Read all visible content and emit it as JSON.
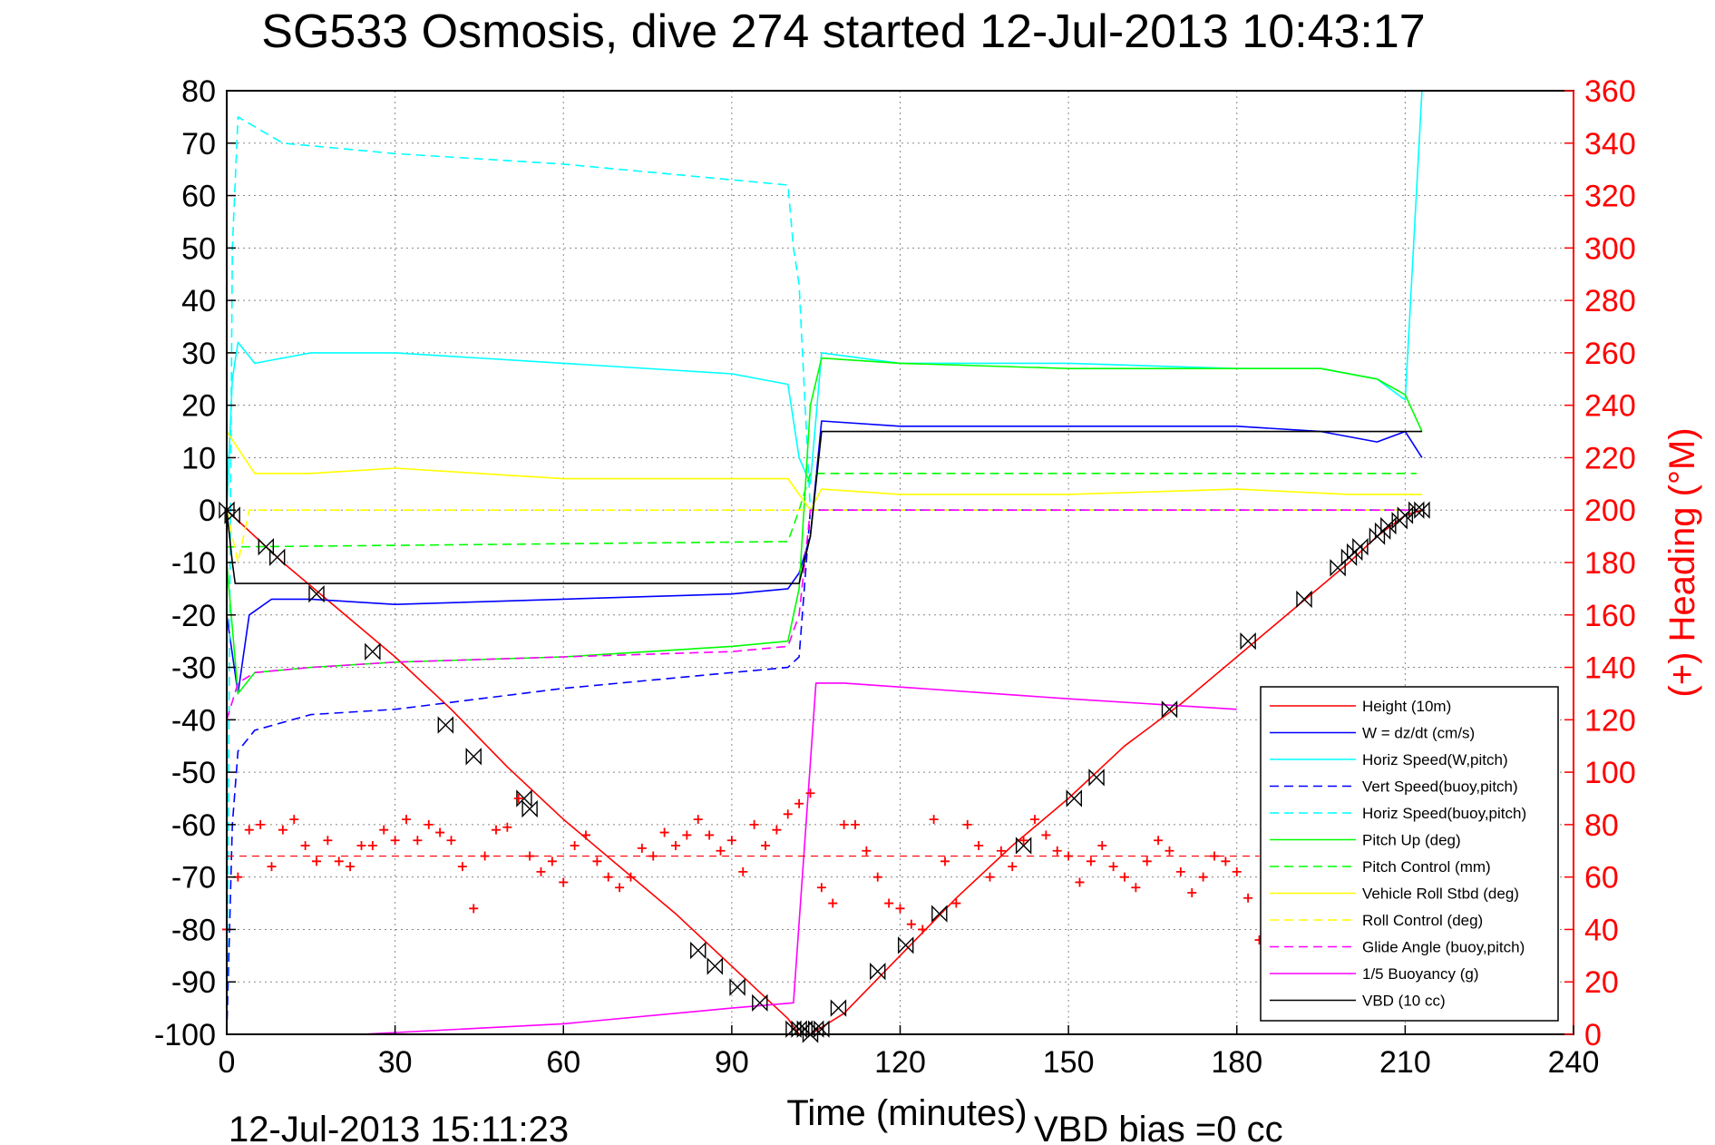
{
  "chart_data": {
    "type": "line",
    "title": "SG533 Osmosis, dive 274 started 12-Jul-2013 10:43:17",
    "xlabel": "Time (minutes)",
    "ylabel": "",
    "y2label": "(+) Heading (°M)",
    "xlim": [
      0,
      240
    ],
    "ylim": [
      -100,
      80
    ],
    "y2lim": [
      0,
      360
    ],
    "xticks": [
      "0",
      "30",
      "60",
      "90",
      "120",
      "150",
      "180",
      "210",
      "240"
    ],
    "yticks": [
      "80",
      "70",
      "60",
      "50",
      "40",
      "30",
      "20",
      "10",
      "0",
      "-10",
      "-20",
      "-30",
      "-40",
      "-50",
      "-60",
      "-70",
      "-80",
      "-90",
      "-100"
    ],
    "y2ticks": [
      "360",
      "340",
      "320",
      "300",
      "280",
      "260",
      "240",
      "220",
      "200",
      "180",
      "160",
      "140",
      "120",
      "100",
      "80",
      "60",
      "40",
      "20",
      "0"
    ],
    "grid": true,
    "legend_position": "bottom-right",
    "footer_left": "12-Jul-2013 15:11:23",
    "footer_right": "VBD bias =0 cc",
    "colors": {
      "red": "#ff0000",
      "blue": "#0000ff",
      "cyan": "#00ffff",
      "green": "#00ff00",
      "yellow": "#ffff00",
      "magenta": "#ff00ff",
      "black": "#000000"
    },
    "series": [
      {
        "name": "Height (10m)",
        "color": "#ff0000",
        "style": "solid",
        "x": [
          0,
          10,
          20,
          30,
          40,
          50,
          60,
          70,
          80,
          90,
          100,
          102,
          104,
          110,
          120,
          130,
          140,
          150,
          160,
          170,
          180,
          190,
          200,
          205,
          210,
          213
        ],
        "y": [
          0,
          -10,
          -19,
          -28,
          -38,
          -49,
          -59,
          -68,
          -77,
          -87,
          -97,
          -100,
          -100,
          -96,
          -85,
          -74,
          -64,
          -55,
          -45,
          -37,
          -28,
          -19,
          -10,
          -5,
          -1,
          0
        ]
      },
      {
        "name": "W = dz/dt (cm/s)",
        "color": "#0000ff",
        "style": "solid",
        "x": [
          0,
          2,
          4,
          8,
          15,
          30,
          60,
          90,
          100,
          102,
          104,
          106,
          120,
          150,
          180,
          195,
          205,
          210,
          213
        ],
        "y": [
          -20,
          -35,
          -20,
          -17,
          -17,
          -18,
          -17,
          -16,
          -15,
          -12,
          -5,
          17,
          16,
          16,
          16,
          15,
          13,
          15,
          10
        ]
      },
      {
        "name": "Horiz Speed(W,pitch)",
        "color": "#00ffff",
        "style": "solid",
        "x": [
          0,
          1,
          2,
          5,
          15,
          30,
          60,
          90,
          100,
          102,
          104,
          106,
          120,
          150,
          180,
          195,
          205,
          210,
          213
        ],
        "y": [
          0,
          25,
          32,
          28,
          30,
          30,
          28,
          26,
          24,
          10,
          5,
          30,
          28,
          28,
          27,
          27,
          25,
          21,
          80
        ]
      },
      {
        "name": "Vert Speed(buoy,pitch)",
        "color": "#0000ff",
        "style": "dashed",
        "x": [
          0,
          1,
          2,
          5,
          15,
          30,
          60,
          90,
          100,
          102,
          104,
          106,
          212
        ],
        "y": [
          -100,
          -60,
          -46,
          -42,
          -39,
          -38,
          -34,
          -31,
          -30,
          -28,
          0,
          0,
          0
        ]
      },
      {
        "name": "Horiz Speed(buoy,pitch)",
        "color": "#00ffff",
        "style": "dashed",
        "x": [
          0,
          1,
          2,
          10,
          30,
          60,
          90,
          100,
          101,
          102,
          104,
          106,
          212
        ],
        "y": [
          -100,
          50,
          75,
          70,
          68,
          66,
          63,
          62,
          50,
          43,
          0,
          0,
          0
        ]
      },
      {
        "name": "Pitch Up (deg)",
        "color": "#00ff00",
        "style": "solid",
        "x": [
          0,
          2,
          5,
          15,
          30,
          60,
          90,
          100,
          102,
          104,
          106,
          120,
          150,
          180,
          195,
          205,
          210,
          213
        ],
        "y": [
          -10,
          -35,
          -31,
          -30,
          -29,
          -28,
          -26,
          -25,
          -15,
          20,
          29,
          28,
          27,
          27,
          27,
          25,
          22,
          15
        ]
      },
      {
        "name": "Pitch Control (mm)",
        "color": "#00ff00",
        "style": "dashed",
        "x": [
          0,
          3,
          100,
          102,
          104,
          212
        ],
        "y": [
          -7,
          -7,
          -6,
          0,
          7,
          7
        ]
      },
      {
        "name": "Vehicle Roll Stbd (deg)",
        "color": "#ffff00",
        "style": "solid",
        "x": [
          0,
          5,
          15,
          30,
          60,
          90,
          100,
          102,
          104,
          106,
          120,
          150,
          180,
          200,
          210,
          213
        ],
        "y": [
          15,
          7,
          7,
          8,
          6,
          6,
          6,
          3,
          0,
          4,
          3,
          3,
          4,
          3,
          3,
          3
        ]
      },
      {
        "name": "Roll Control (deg)",
        "color": "#ffff00",
        "style": "dashed",
        "x": [
          0,
          2,
          4,
          100,
          102,
          104,
          212
        ],
        "y": [
          0,
          -10,
          0,
          0,
          0,
          0,
          0
        ]
      },
      {
        "name": "Glide Angle (buoy,pitch)",
        "color": "#ff00ff",
        "style": "dashed",
        "x": [
          0,
          2,
          5,
          15,
          30,
          60,
          90,
          100,
          102,
          104,
          106,
          212
        ],
        "y": [
          -40,
          -33,
          -31,
          -30,
          -29,
          -28,
          -27,
          -26,
          -20,
          0,
          0,
          0
        ]
      },
      {
        "name": "1/5 Buoyancy (g)",
        "color": "#ff00ff",
        "style": "solid",
        "x": [
          24,
          60,
          90,
          101,
          105,
          110,
          150,
          180
        ],
        "y": [
          -100,
          -98,
          -95,
          -94,
          -33,
          -33,
          -36,
          -38
        ]
      },
      {
        "name": "VBD (10 cc)",
        "color": "#000000",
        "style": "solid",
        "x": [
          0,
          1,
          1.5,
          100,
          102,
          104,
          106,
          212,
          213
        ],
        "y": [
          0,
          -10,
          -14,
          -14,
          -14,
          -5,
          15,
          15,
          15
        ]
      }
    ],
    "heading": {
      "axis": "right",
      "marker": "+",
      "color": "#ff0000",
      "desired_heading": 68,
      "x": [
        0,
        2,
        4,
        6,
        8,
        10,
        12,
        14,
        16,
        18,
        20,
        22,
        24,
        26,
        28,
        30,
        32,
        34,
        36,
        38,
        40,
        42,
        44,
        46,
        48,
        50,
        52,
        54,
        56,
        58,
        60,
        62,
        64,
        66,
        68,
        70,
        72,
        74,
        76,
        78,
        80,
        82,
        84,
        86,
        88,
        90,
        92,
        94,
        96,
        98,
        100,
        102,
        104,
        106,
        108,
        110,
        112,
        114,
        116,
        118,
        120,
        122,
        124,
        126,
        128,
        130,
        132,
        134,
        136,
        138,
        140,
        142,
        144,
        146,
        148,
        150,
        152,
        154,
        156,
        158,
        160,
        162,
        164,
        166,
        168,
        170,
        172,
        174,
        176,
        178,
        180,
        182,
        184
      ],
      "y": [
        40,
        60,
        78,
        80,
        64,
        78,
        82,
        72,
        66,
        74,
        66,
        64,
        72,
        72,
        78,
        74,
        82,
        74,
        80,
        77,
        74,
        64,
        48,
        68,
        78,
        79,
        90,
        68,
        62,
        66,
        58,
        72,
        76,
        66,
        60,
        56,
        60,
        71,
        68,
        77,
        72,
        76,
        82,
        76,
        70,
        74,
        62,
        80,
        72,
        78,
        84,
        88,
        92,
        56,
        50,
        80,
        80,
        70,
        60,
        50,
        48,
        42,
        40,
        82,
        66,
        50,
        80,
        72,
        60,
        70,
        64,
        74,
        82,
        76,
        70,
        68,
        58,
        66,
        72,
        64,
        60,
        56,
        66,
        74,
        70,
        62,
        54,
        60,
        68,
        66,
        62,
        52,
        36
      ]
    },
    "dive_markers": {
      "color": "#000000",
      "x": [
        0,
        1,
        7,
        9,
        16,
        26,
        39,
        44,
        53,
        54,
        84,
        87,
        91,
        95,
        101,
        102,
        103,
        104,
        105,
        106,
        109,
        116,
        121,
        127,
        142,
        151,
        155,
        168,
        182,
        192,
        198,
        200,
        201,
        202,
        205,
        206,
        207,
        209,
        210,
        212,
        213
      ],
      "y": [
        0,
        -1,
        -7,
        -9,
        -16,
        -27,
        -41,
        -47,
        -55,
        -57,
        -84,
        -87,
        -91,
        -94,
        -99,
        -99,
        -99,
        -100,
        -99,
        -99,
        -95,
        -88,
        -83,
        -77,
        -64,
        -55,
        -51,
        -38,
        -25,
        -17,
        -11,
        -9,
        -8,
        -7,
        -5,
        -4,
        -3,
        -2,
        -1,
        0,
        0
      ]
    }
  }
}
